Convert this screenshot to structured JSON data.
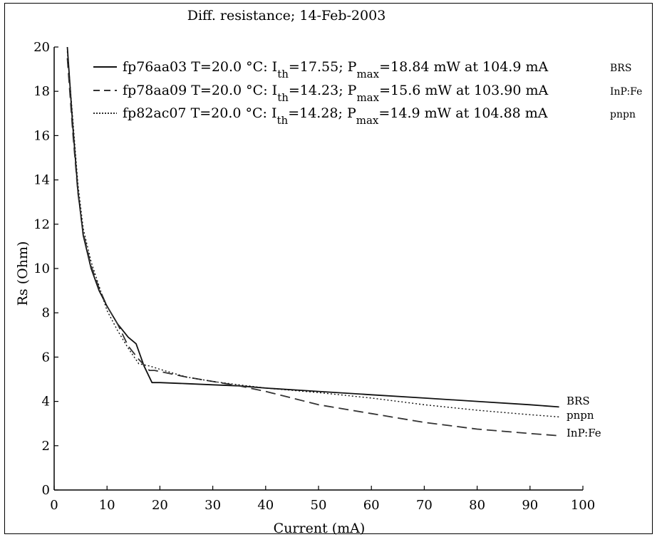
{
  "chart_data": {
    "type": "line",
    "title": "Diff. resistance; 14-Feb-2003",
    "xlabel": "Current (mA)",
    "ylabel": "Rs (Ohm)",
    "xlim": [
      0,
      100
    ],
    "ylim": [
      0,
      20
    ],
    "xticks": [
      0,
      10,
      20,
      30,
      40,
      50,
      60,
      70,
      80,
      90,
      100
    ],
    "yticks": [
      0,
      2,
      4,
      6,
      8,
      10,
      12,
      14,
      16,
      18,
      20
    ],
    "grid": false,
    "legend_position": "top",
    "series": [
      {
        "name": "BRS",
        "style": "solid",
        "legend": {
          "device": "fp76aa03",
          "temp": "T=20.0 °C:",
          "ith": "=17.55;",
          "pmax": "=18.84 mW at 104.9 mA",
          "tag": "BRS"
        },
        "end_label": "BRS",
        "x": [
          2.5,
          3.5,
          4.5,
          5.5,
          7,
          8.5,
          10,
          12,
          14,
          15.5,
          17,
          18.5,
          20,
          25,
          30,
          35,
          40,
          50,
          60,
          70,
          80,
          90,
          95.5
        ],
        "y": [
          20,
          16.5,
          13.5,
          11.5,
          10,
          9,
          8.3,
          7.5,
          6.9,
          6.6,
          5.6,
          4.85,
          4.85,
          4.8,
          4.75,
          4.7,
          4.6,
          4.45,
          4.3,
          4.15,
          4.0,
          3.85,
          3.75
        ]
      },
      {
        "name": "InP:Fe",
        "style": "dashed",
        "legend": {
          "device": "fp78aa09",
          "temp": "T=20.0 °C:",
          "ith": "=14.23;",
          "pmax": "=15.6 mW at 103.90 mA",
          "tag": "InP:Fe"
        },
        "end_label": "InP:Fe",
        "x": [
          2.5,
          3.5,
          4.5,
          5.5,
          7,
          8.5,
          10,
          12,
          14,
          16,
          18,
          19,
          20,
          25,
          30,
          35,
          40,
          45,
          50,
          60,
          70,
          80,
          90,
          95.5
        ],
        "y": [
          19.5,
          16.2,
          13.4,
          11.6,
          10.1,
          9.1,
          8.3,
          7.5,
          6.5,
          5.9,
          5.4,
          5.4,
          5.35,
          5.1,
          4.9,
          4.7,
          4.45,
          4.15,
          3.85,
          3.45,
          3.05,
          2.75,
          2.55,
          2.45
        ]
      },
      {
        "name": "pnpn",
        "style": "dotted",
        "legend": {
          "device": "fp82ac07",
          "temp": "T=20.0 °C:",
          "ith": "=14.28;",
          "pmax": "=14.9 mW at 104.88 mA",
          "tag": "pnpn"
        },
        "end_label": "pnpn",
        "x": [
          2.5,
          3.5,
          4.5,
          5.5,
          7,
          8.5,
          10,
          12,
          14,
          16,
          18,
          20,
          25,
          30,
          35,
          40,
          50,
          60,
          70,
          80,
          90,
          95.5
        ],
        "y": [
          19.8,
          16.8,
          13.8,
          11.8,
          10.3,
          9.2,
          8.1,
          7.2,
          6.4,
          5.7,
          5.6,
          5.45,
          5.1,
          4.9,
          4.75,
          4.6,
          4.4,
          4.15,
          3.85,
          3.6,
          3.4,
          3.3
        ]
      }
    ]
  }
}
